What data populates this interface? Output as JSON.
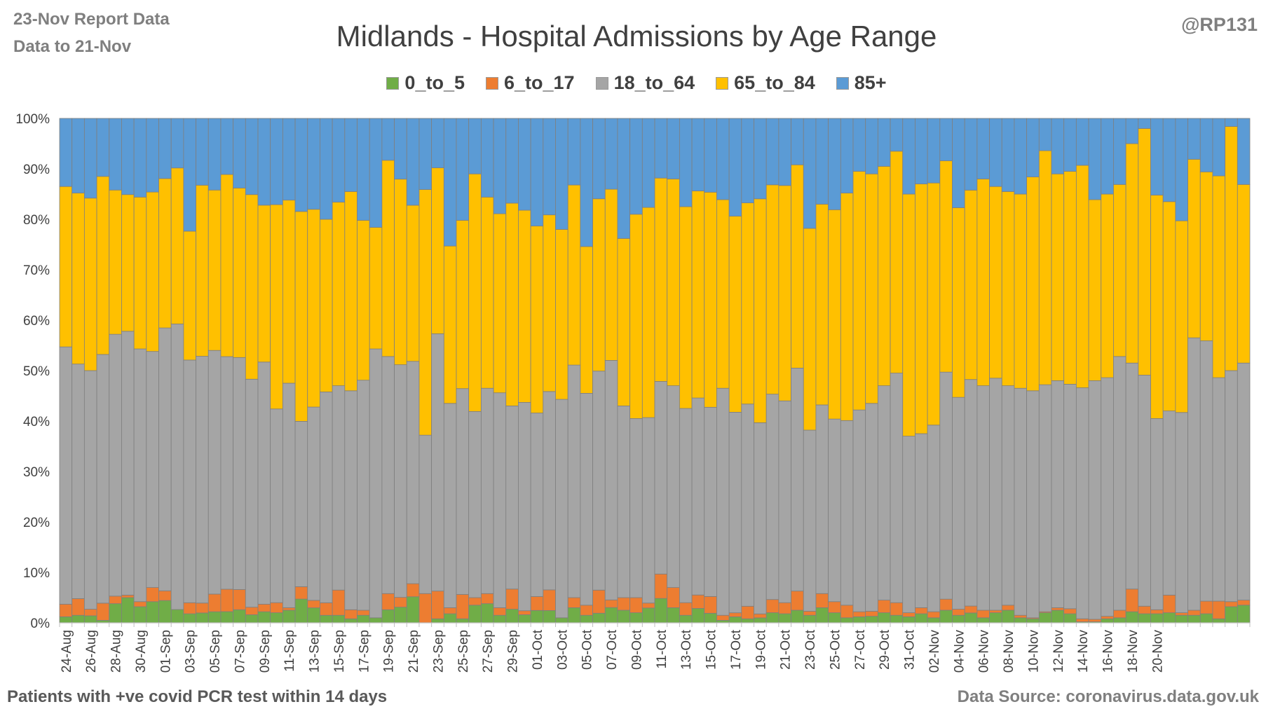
{
  "header": {
    "report_date": "23-Nov Report Data",
    "data_to": "Data to 21-Nov",
    "handle": "@RP131"
  },
  "footer": {
    "note": "Patients with  +ve covid PCR test within 14 days",
    "source": "Data Source: coronavirus.data.gov.uk"
  },
  "chart_data": {
    "type": "bar",
    "stacked": "percent",
    "title": "Midlands - Hospital Admissions by Age Range",
    "xlabel": "",
    "ylabel": "",
    "ylim": [
      0,
      100
    ],
    "y_tick_labels": [
      "0%",
      "10%",
      "20%",
      "30%",
      "40%",
      "50%",
      "60%",
      "70%",
      "80%",
      "90%",
      "100%"
    ],
    "x_tick_labels": [
      "24-Aug",
      "26-Aug",
      "28-Aug",
      "30-Aug",
      "01-Sep",
      "03-Sep",
      "05-Sep",
      "07-Sep",
      "09-Sep",
      "11-Sep",
      "13-Sep",
      "15-Sep",
      "17-Sep",
      "19-Sep",
      "21-Sep",
      "23-Sep",
      "25-Sep",
      "27-Sep",
      "29-Sep",
      "01-Oct",
      "03-Oct",
      "05-Oct",
      "07-Oct",
      "09-Oct",
      "11-Oct",
      "13-Oct",
      "15-Oct",
      "17-Oct",
      "19-Oct",
      "21-Oct",
      "23-Oct",
      "25-Oct",
      "27-Oct",
      "29-Oct",
      "31-Oct",
      "02-Nov",
      "04-Nov",
      "06-Nov",
      "08-Nov",
      "10-Nov",
      "12-Nov",
      "14-Nov",
      "16-Nov",
      "18-Nov",
      "20-Nov"
    ],
    "grid": true,
    "legend_position": "top",
    "series": [
      {
        "name": "0_to_5",
        "color": "#70ad47",
        "values": [
          1.2,
          1.5,
          1.4,
          0.5,
          3.8,
          5.0,
          3.2,
          4.2,
          4.6,
          2.5,
          1.8,
          2.0,
          2.2,
          2.0,
          2.6,
          1.6,
          2.2,
          2.0,
          2.5,
          4.8,
          3.0,
          1.5,
          1.5,
          0.8,
          1.5,
          1.0,
          2.6,
          3.2,
          5.2,
          0.0,
          0.8,
          1.8,
          0.8,
          3.5,
          3.8,
          1.5,
          2.7,
          1.6,
          2.5,
          2.5,
          1.0,
          3.0,
          1.5,
          2.0,
          3.0,
          2.5,
          2.0,
          3.0,
          4.5,
          3.0,
          1.5,
          3.0,
          2.0,
          0.5,
          1.2,
          0.8,
          1.0,
          2.0,
          1.8,
          2.5,
          1.5,
          3.0,
          2.0,
          1.0,
          1.2,
          1.3,
          2.0,
          1.5,
          1.2,
          1.8,
          1.0,
          2.5,
          1.5,
          2.0,
          1.0,
          2.0,
          2.5,
          1.0,
          0.8,
          2.0,
          2.5,
          1.8,
          0.2,
          0.2,
          0.8,
          1.0,
          2.2,
          1.8,
          1.8,
          2.0,
          1.5,
          1.5,
          1.8,
          0.8,
          3.2,
          3.5
        ]
      },
      {
        "name": "6_to_17",
        "color": "#ed7d31",
        "values": [
          2.5,
          3.3,
          1.3,
          3.4,
          1.5,
          0.5,
          1.0,
          2.8,
          2.0,
          0.0,
          2.2,
          2.0,
          3.5,
          4.0,
          4.0,
          1.5,
          1.5,
          2.0,
          0.5,
          2.5,
          1.5,
          2.5,
          5.0,
          1.8,
          1.0,
          0.0,
          3.2,
          2.0,
          2.6,
          5.8,
          5.5,
          1.2,
          4.8,
          1.5,
          2.0,
          1.5,
          4.0,
          0.8,
          2.8,
          4.2,
          0.0,
          2.0,
          2.0,
          4.8,
          1.5,
          2.5,
          3.0,
          1.0,
          4.5,
          4.0,
          2.5,
          2.8,
          3.5,
          1.0,
          0.8,
          2.5,
          0.8,
          2.6,
          2.2,
          3.8,
          0.8,
          2.8,
          2.2,
          2.5,
          1.0,
          1.0,
          2.5,
          2.5,
          0.8,
          1.2,
          1.2,
          2.2,
          1.2,
          1.4,
          1.5,
          0.5,
          1.0,
          0.5,
          0.2,
          0.2,
          0.5,
          1.0,
          0.6,
          0.5,
          0.5,
          1.5,
          4.5,
          1.5,
          0.8,
          3.5,
          0.5,
          1.0,
          2.5,
          3.5,
          1.0,
          1.0
        ]
      },
      {
        "name": "18_to_64",
        "color": "#a5a5a5",
        "values": [
          51.0,
          46.5,
          47.3,
          49.3,
          51.9,
          52.3,
          50.1,
          46.8,
          54.2,
          53.6,
          48.2,
          49.9,
          48.3,
          41.5,
          46.0,
          45.2,
          48.0,
          38.4,
          44.5,
          33.4,
          38.7,
          42.0,
          40.5,
          43.4,
          45.6,
          53.3,
          47.0,
          47.5,
          44.3,
          31.4,
          51.0,
          40.5,
          40.6,
          36.9,
          40.7,
          42.6,
          36.3,
          41.3,
          37.0,
          40.3,
          43.3,
          46.1,
          42.0,
          45.5,
          47.0,
          38.0,
          35.5,
          37.5,
          35.5,
          40.0,
          38.5,
          41.0,
          39.5,
          45.0,
          40.0,
          40.2,
          38.5,
          40.5,
          40.0,
          44.2,
          35.9,
          37.4,
          36.2,
          36.6,
          40.0,
          41.2,
          42.5,
          45.5,
          35.0,
          34.5,
          37.0,
          45.0,
          42.0,
          45.8,
          44.5,
          46.0,
          43.5,
          45.0,
          45.0,
          45.0,
          45.0,
          44.5,
          45.8,
          47.3,
          47.3,
          50.3,
          44.8,
          45.8,
          37.9,
          36.5,
          39.7,
          54.0,
          51.6,
          44.3,
          45.8,
          47.0
        ]
      },
      {
        "name": "65_to_84",
        "color": "#ffc000",
        "values": [
          31.8,
          33.9,
          34.2,
          35.3,
          28.6,
          27.1,
          30.1,
          31.6,
          30.8,
          29.3,
          25.6,
          34.6,
          31.8,
          32.5,
          33.6,
          36.6,
          31.1,
          40.5,
          36.3,
          42.4,
          39.6,
          34.4,
          36.4,
          39.5,
          31.7,
          24.1,
          38.9,
          37.9,
          31.1,
          48.7,
          32.9,
          31.2,
          33.2,
          47.1,
          37.9,
          35.5,
          40.2,
          38.1,
          37.7,
          35.9,
          33.7,
          35.7,
          29.1,
          35.8,
          33.6,
          33.2,
          40.5,
          42.5,
          37.5,
          41.0,
          40.0,
          43.1,
          44.9,
          37.4,
          39.1,
          40.0,
          45.1,
          41.3,
          42.7,
          40.3,
          40.0,
          39.8,
          41.5,
          45.1,
          47.3,
          45.5,
          43.5,
          44.0,
          48.0,
          49.5,
          48.0,
          41.9,
          37.6,
          38.3,
          41.0,
          38.0,
          38.5,
          38.5,
          42.4,
          46.4,
          41.0,
          42.2,
          44.1,
          35.9,
          36.4,
          34.1,
          43.5,
          48.9,
          44.3,
          41.5,
          38.0,
          35.4,
          33.5,
          40.0,
          48.4,
          35.4
        ]
      },
      {
        "name": "85+",
        "color": "#5b9bd5",
        "values": [
          13.5,
          14.8,
          15.8,
          11.5,
          14.2,
          15.1,
          15.6,
          14.6,
          12.4,
          9.3,
          22.4,
          13.5,
          14.2,
          10.0,
          13.8,
          15.1,
          17.2,
          17.1,
          16.2,
          18.8,
          18.2,
          20.1,
          16.6,
          14.5,
          20.2,
          21.6,
          8.3,
          12.4,
          17.3,
          14.1,
          9.8,
          25.3,
          20.1,
          11.0,
          15.6,
          18.9,
          16.8,
          18.2,
          21.7,
          19.6,
          22.0,
          13.2,
          25.4,
          16.7,
          13.9,
          23.8,
          19.0,
          18.0,
          11.0,
          12.0,
          17.5,
          15.1,
          15.4,
          16.1,
          19.5,
          16.8,
          16.2,
          13.1,
          13.3,
          9.2,
          21.8,
          17.0,
          18.1,
          14.8,
          10.5,
          11.0,
          9.5,
          6.5,
          15.0,
          13.0,
          12.8,
          8.4,
          17.7,
          14.5,
          12.0,
          13.5,
          14.5,
          15.0,
          11.6,
          6.4,
          11.0,
          10.5,
          9.3,
          16.1,
          15.0,
          13.1,
          5.0,
          2.0,
          15.2,
          16.5,
          20.3,
          8.1,
          10.6,
          11.4,
          1.6,
          13.1
        ]
      }
    ]
  }
}
